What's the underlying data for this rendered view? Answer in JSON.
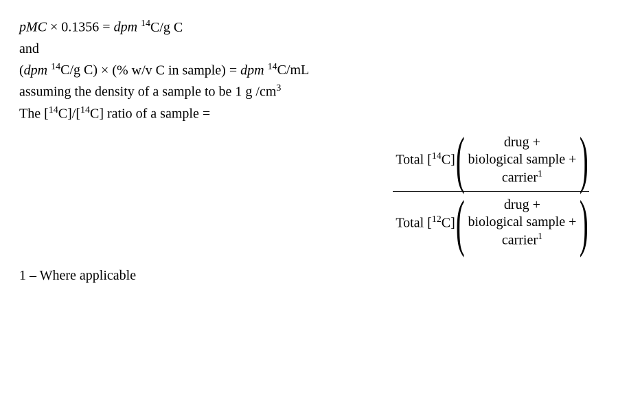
{
  "line1": {
    "pmc": "pMC",
    "times": "×",
    "const": "0.1356",
    "eq": "=",
    "dpm": "dpm",
    "sup14": "14",
    "cgc": "C/g C"
  },
  "line2": "and",
  "line3": {
    "open": "(",
    "dpm": "dpm",
    "sup14": "14",
    "cgc": "C/g C)",
    "times": "×",
    "wvpart": "(% w/v  C in sample)",
    "eq": "=",
    "dpm2": "dpm",
    "sup14b": "14",
    "cml": "C/mL"
  },
  "line4": {
    "txt": "assuming the density of a sample to be 1 g /cm",
    "sup3": "3"
  },
  "line5": {
    "a": "The [",
    "sup14a": "14",
    "b": "C]/[",
    "sup14b": "14",
    "c": "C] ratio of a sample ="
  },
  "frac": {
    "num": {
      "total": "Total  [",
      "sup": "14",
      "close": "C]",
      "r1": "drug +",
      "r2": "biological sample +",
      "r3a": "carrier",
      "r3sup": "1"
    },
    "den": {
      "total": "Total  [",
      "sup": "12",
      "close": "C]",
      "r1": "drug +",
      "r2": "biological sample +",
      "r3a": "carrier",
      "r3sup": "1"
    }
  },
  "footnote": "1 – Where applicable"
}
